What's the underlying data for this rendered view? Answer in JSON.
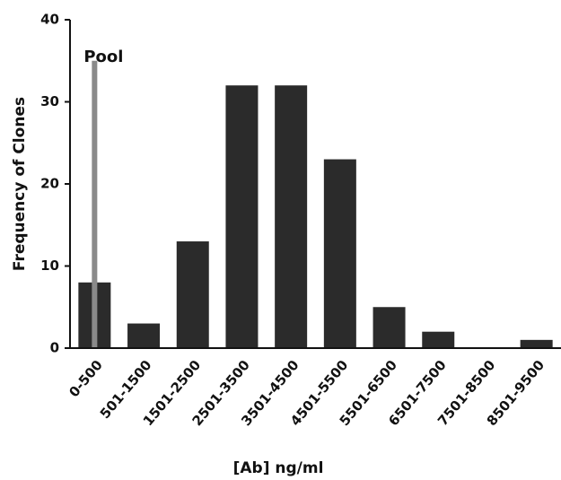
{
  "chart_data": {
    "type": "bar",
    "ylabel": "Frequency of Clones",
    "xlabel": "[Ab] ng/ml",
    "categories": [
      "0-500",
      "501-1500",
      "1501-2500",
      "2501-3500",
      "3501-4500",
      "4501-5500",
      "5501-6500",
      "6501-7500",
      "7501-8500",
      "8501-9500"
    ],
    "values": [
      8,
      3,
      13,
      32,
      32,
      23,
      5,
      2,
      0,
      1
    ],
    "color": "#2b2b2b",
    "ylim": [
      0,
      40
    ],
    "yticks": [
      0,
      10,
      20,
      30,
      40
    ],
    "annotation": {
      "label": "Pool",
      "value": 35,
      "category": 0,
      "color": "#8a8a8a"
    }
  }
}
